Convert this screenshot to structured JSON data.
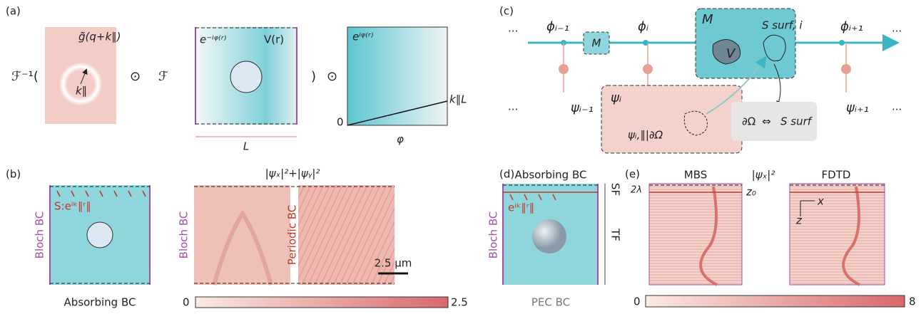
{
  "panel_a": {
    "label": "(a)",
    "inverse_ft": "ℱ⁻¹(",
    "kernel": "g̃̃(q+k∥)",
    "k_vector": "k∥",
    "odot_1": "⊙",
    "ft": "ℱ",
    "phase_neg": "e⁻ⁱᵠ⁽ʳ⁾",
    "potential": "V(r)",
    "close_paren": ")",
    "odot_2": "⊙",
    "phase_pos": "eⁱᵠ⁽ʳ⁾",
    "slope": "k∥L",
    "zero": "0",
    "phi_axis": "φ",
    "length": "L"
  },
  "panel_b": {
    "label": "(b)",
    "bloch_left": "Bloch BC",
    "source": "S:eⁱᵏ∥ʳ∥",
    "absorbing": "Absorbing BC",
    "field_title": "|ψₓ|²+|ψᵧ|²",
    "bloch_mid": "Bloch BC",
    "periodic": "Periodic BC",
    "scale": "2.5 μm",
    "cbar_min": "0",
    "cbar_max": "2.5"
  },
  "panel_c": {
    "label": "(c)",
    "dots_tl": "...",
    "phi_prev": "ϕᵢ₋₁",
    "m_small": "M",
    "phi_i": "ϕᵢ",
    "m_big": "M",
    "v": "V",
    "s_surf_i": "S surf, i",
    "phi_next": "ϕᵢ₊₁",
    "dots_tr": "...",
    "dots_bl": "...",
    "psi_prev": "ψᵢ₋₁",
    "psi_i": "ψᵢ",
    "psi_boundary": "ψᵢ,∥|∂Ω",
    "omega": "∂Ω",
    "equiv": "⇔",
    "s_surf": "S surf",
    "psi_next": "ψᵢ₊₁",
    "dots_br": "..."
  },
  "panel_d": {
    "label": "(d)",
    "absorbing": "Absorbing BC",
    "sf": "SF",
    "tf": "TF",
    "bloch": "Bloch BC",
    "source": "eⁱᵏ∥ʳ∥",
    "pec": "PEC BC"
  },
  "panel_e": {
    "label": "(e)",
    "mbs": "MBS",
    "field_title": "|ψₓ|²",
    "fdtd": "FDTD",
    "two_lambda": "2λ",
    "z0": "z₀",
    "x": "x",
    "z": "z",
    "cbar_min": "0",
    "cbar_max": "8"
  }
}
